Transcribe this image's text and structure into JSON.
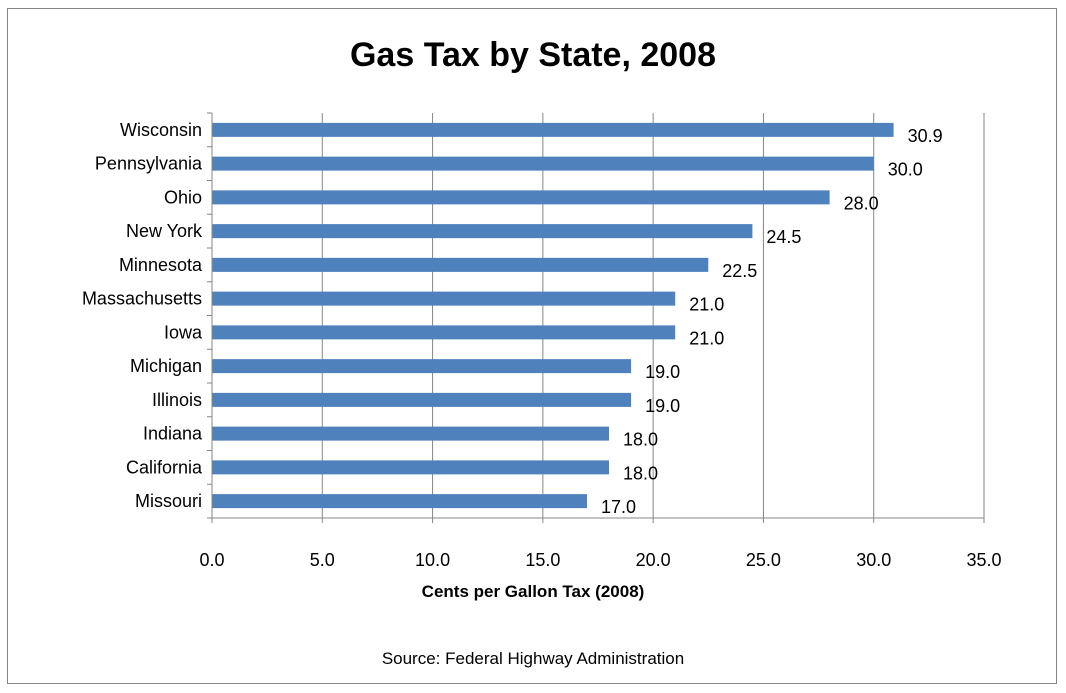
{
  "chart_data": {
    "type": "bar",
    "orientation": "horizontal",
    "title": "Gas Tax by State, 2008",
    "xlabel": "Cents per Gallon  Tax  (2008)",
    "ylabel": "",
    "source": "Source: Federal Highway  Administration",
    "categories": [
      "Wisconsin",
      "Pennsylvania",
      "Ohio",
      "New York",
      "Minnesota",
      "Massachusetts",
      "Iowa",
      "Michigan",
      "Illinois",
      "Indiana",
      "California",
      "Missouri"
    ],
    "values": [
      30.9,
      30.0,
      28.0,
      24.5,
      22.5,
      21.0,
      21.0,
      19.0,
      19.0,
      18.0,
      18.0,
      17.0
    ],
    "value_labels": [
      "30.9",
      "30.0",
      "28.0",
      "24.5",
      "22.5",
      "21.0",
      "21.0",
      "19.0",
      "19.0",
      "18.0",
      "18.0",
      "17.0"
    ],
    "xlim": [
      0,
      35
    ],
    "xticks": [
      "0.0",
      "5.0",
      "10.0",
      "15.0",
      "20.0",
      "25.0",
      "30.0",
      "35.0"
    ],
    "grid": "vertical",
    "bar_color": "#4f81bd",
    "gridline_color": "#868686"
  }
}
